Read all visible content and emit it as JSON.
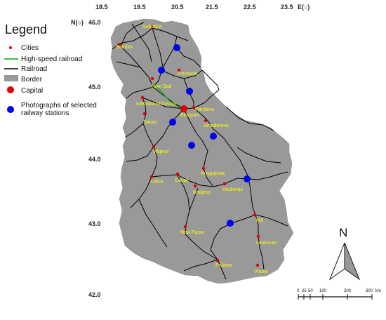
{
  "axes": {
    "longitude_ticks": [
      "18.5",
      "19.5",
      "20.5",
      "21.5",
      "22.5",
      "23.5"
    ],
    "longitude_label": "E(○)",
    "latitude_ticks": [
      "46.0",
      "45.0",
      "44.0",
      "43.0",
      "42.0"
    ],
    "latitude_label": "N(○)"
  },
  "legend": {
    "title": "Legend",
    "items": [
      {
        "symbol": "city-dot",
        "label": "Cities",
        "color": "#e00000"
      },
      {
        "symbol": "line",
        "label": "High-speed railroad",
        "color": "#00b000"
      },
      {
        "symbol": "line",
        "label": "Railroad",
        "color": "#000000"
      },
      {
        "symbol": "rect",
        "label": "Border",
        "color": "#999999"
      },
      {
        "symbol": "capital-dot",
        "label": "Capital",
        "color": "#e00000"
      },
      {
        "symbol": "station-dot",
        "label": "Photographs of selected\nrailway stations",
        "color": "#0000ee"
      }
    ]
  },
  "cities": [
    {
      "name": "Subotica"
    },
    {
      "name": "Sombor"
    },
    {
      "name": "Zrenjanin"
    },
    {
      "name": "Novi Sad"
    },
    {
      "name": "Sremska Mitrovica"
    },
    {
      "name": "Pančevo"
    },
    {
      "name": "Beograd"
    },
    {
      "name": "Smederevo"
    },
    {
      "name": "Šabac"
    },
    {
      "name": "Valjevo"
    },
    {
      "name": "Kragujevac"
    },
    {
      "name": "Užice"
    },
    {
      "name": "Čačak"
    },
    {
      "name": "Kraljevo"
    },
    {
      "name": "Kruševac"
    },
    {
      "name": "Niš"
    },
    {
      "name": "Novi Pazar"
    },
    {
      "name": "Leskovac"
    },
    {
      "name": "Priština"
    },
    {
      "name": "Vranje"
    }
  ],
  "north_arrow": {
    "label": "N"
  },
  "scale_bar": {
    "ticks": [
      "0",
      "25",
      "50",
      "100",
      "200",
      "300"
    ],
    "unit": "km"
  },
  "colors": {
    "border_fill": "#999999",
    "railroad": "#000000",
    "high_speed": "#00b000",
    "city": "#e00000",
    "station": "#0000ee",
    "city_label": "#ffff00"
  }
}
